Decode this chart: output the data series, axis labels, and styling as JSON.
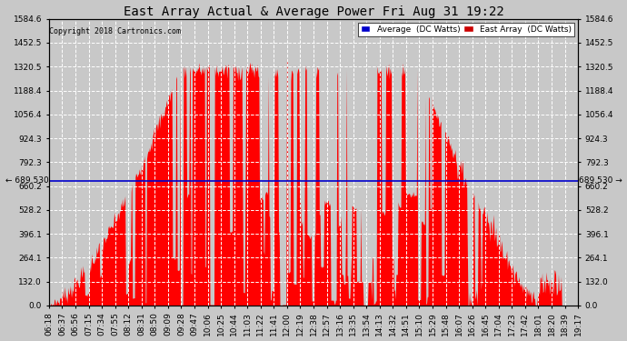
{
  "title": "East Array Actual & Average Power Fri Aug 31 19:22",
  "copyright": "Copyright 2018 Cartronics.com",
  "background_color": "#c8c8c8",
  "plot_bg_color": "#c8c8c8",
  "y_ticks": [
    0.0,
    132.0,
    264.1,
    396.1,
    528.2,
    660.2,
    792.3,
    924.3,
    1056.4,
    1188.4,
    1320.5,
    1452.5,
    1584.6
  ],
  "y_labels": [
    "0.0",
    "132.0",
    "264.1",
    "396.1",
    "528.2",
    "660.2",
    "792.3",
    "924.3",
    "1056.4",
    "1188.4",
    "1320.5",
    "1452.5",
    "1584.6"
  ],
  "hline_value": 689.53,
  "hline_label": "689.530",
  "ylim": [
    0,
    1584.6
  ],
  "fill_color": "#ff0000",
  "avg_line_color": "#0000cc",
  "grid_color": "#ffffff",
  "legend_avg_bg": "#0000cc",
  "legend_east_bg": "#cc0000",
  "x_labels": [
    "06:18",
    "06:37",
    "06:56",
    "07:15",
    "07:34",
    "07:55",
    "08:12",
    "08:31",
    "08:50",
    "09:09",
    "09:28",
    "09:47",
    "10:06",
    "10:25",
    "10:44",
    "11:03",
    "11:22",
    "11:41",
    "12:00",
    "12:19",
    "12:38",
    "12:57",
    "13:16",
    "13:35",
    "13:54",
    "14:13",
    "14:32",
    "14:51",
    "15:10",
    "15:29",
    "15:48",
    "16:07",
    "16:26",
    "16:45",
    "17:04",
    "17:23",
    "17:42",
    "18:01",
    "18:20",
    "18:39",
    "19:17"
  ]
}
